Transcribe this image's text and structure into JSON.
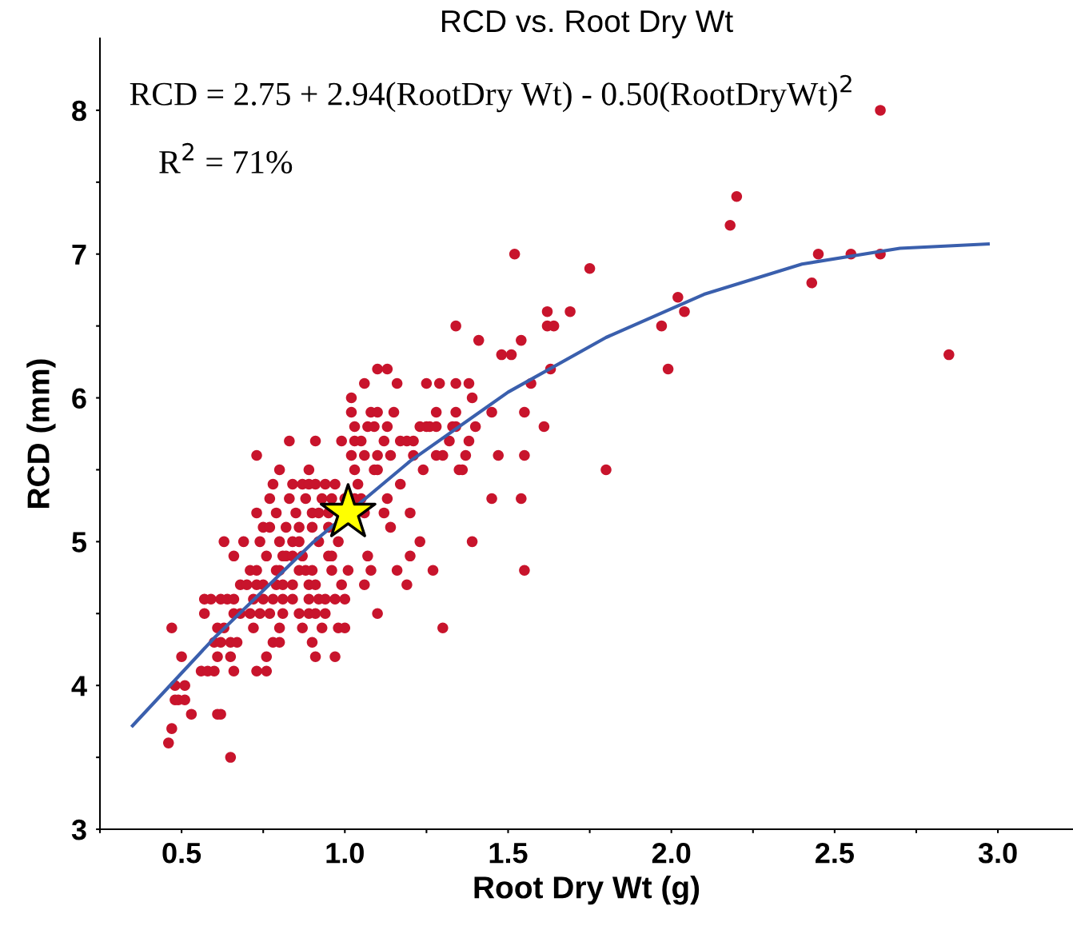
{
  "chart_data": {
    "type": "scatter",
    "title": "RCD vs. Root Dry Wt",
    "xlabel": "Root Dry Wt (g)",
    "ylabel": "RCD (mm)",
    "annotations": [
      "RCD = 2.75 + 2.94(RootDry Wt) - 0.50(RootDryWt)$^{2}$",
      "R$^{2}$ = 71%"
    ],
    "xlim": [
      0.25,
      3.23
    ],
    "ylim": [
      3,
      8.5
    ],
    "xticks": [
      {
        "value": 0.25,
        "label": null
      },
      {
        "value": 0.5,
        "label": "0.5"
      },
      {
        "value": 0.75,
        "label": null
      },
      {
        "value": 1.0,
        "label": "1.0"
      },
      {
        "value": 1.25,
        "label": null
      },
      {
        "value": 1.5,
        "label": "1.5"
      },
      {
        "value": 1.75,
        "label": null
      },
      {
        "value": 2.0,
        "label": "2.0"
      },
      {
        "value": 2.25,
        "label": null
      },
      {
        "value": 2.5,
        "label": "2.5"
      },
      {
        "value": 2.75,
        "label": null
      },
      {
        "value": 3.0,
        "label": "3.0"
      }
    ],
    "yticks": [
      3,
      {
        "value": 3.5,
        "label": null
      },
      4,
      {
        "value": 4.5,
        "label": null
      },
      5,
      {
        "value": 5.5,
        "label": null
      },
      6,
      {
        "value": 6.5,
        "label": null
      },
      7,
      {
        "value": 7.5,
        "label": null
      },
      8
    ],
    "grid": false,
    "legend": false,
    "series": [
      {
        "marker": "circle",
        "color": "#c8142c",
        "x": [
          2.64,
          2.2,
          2.18,
          1.52,
          2.45,
          2.55,
          2.64,
          1.75,
          2.43,
          2.02,
          1.62,
          1.69,
          2.04,
          1.34,
          1.62,
          1.64,
          1.97,
          1.41,
          1.54,
          1.48,
          1.51,
          2.85,
          1.1,
          1.13,
          1.63,
          1.99,
          1.06,
          1.16,
          1.25,
          1.29,
          1.34,
          1.38,
          1.57,
          1.02,
          1.39,
          1.02,
          1.08,
          1.1,
          1.15,
          1.28,
          1.34,
          1.45,
          1.55,
          1.03,
          1.07,
          1.09,
          1.13,
          1.23,
          1.25,
          1.26,
          1.28,
          1.33,
          1.34,
          1.4,
          1.61,
          0.83,
          0.91,
          0.99,
          1.03,
          1.05,
          1.12,
          1.17,
          1.19,
          1.21,
          1.32,
          1.38,
          0.73,
          1.02,
          1.06,
          1.1,
          1.14,
          1.21,
          1.28,
          1.3,
          1.37,
          1.47,
          1.55,
          0.8,
          0.89,
          1.03,
          1.09,
          1.1,
          1.24,
          1.35,
          1.36,
          1.8,
          0.78,
          0.84,
          0.87,
          0.89,
          0.91,
          0.94,
          0.97,
          1.04,
          1.17,
          0.77,
          0.83,
          0.88,
          0.93,
          0.96,
          1.0,
          1.03,
          1.05,
          1.13,
          1.45,
          1.54,
          0.73,
          0.79,
          0.85,
          0.9,
          0.92,
          0.95,
          1.06,
          1.12,
          1.2,
          0.75,
          0.77,
          0.82,
          0.86,
          0.9,
          0.95,
          1.14,
          0.63,
          0.69,
          0.74,
          0.8,
          0.84,
          0.86,
          0.92,
          0.98,
          1.23,
          1.39,
          0.66,
          0.76,
          0.81,
          0.82,
          0.84,
          0.87,
          0.95,
          0.96,
          1.07,
          1.2,
          0.71,
          0.73,
          0.79,
          0.8,
          0.86,
          0.88,
          0.9,
          0.96,
          1.01,
          1.08,
          1.16,
          1.27,
          1.55,
          0.68,
          0.7,
          0.73,
          0.75,
          0.79,
          0.81,
          0.84,
          0.89,
          0.91,
          0.99,
          1.06,
          1.19,
          0.57,
          0.59,
          0.62,
          0.64,
          0.66,
          0.72,
          0.75,
          0.78,
          0.81,
          0.84,
          0.89,
          0.92,
          0.94,
          0.97,
          1.0,
          0.57,
          0.66,
          0.68,
          0.71,
          0.74,
          0.77,
          0.81,
          0.86,
          0.89,
          0.91,
          0.94,
          1.1,
          0.47,
          0.61,
          0.63,
          0.72,
          0.8,
          0.87,
          0.93,
          0.98,
          1.0,
          1.3,
          0.6,
          0.62,
          0.65,
          0.67,
          0.78,
          0.8,
          0.9,
          0.5,
          0.61,
          0.65,
          0.76,
          0.91,
          0.97,
          0.56,
          0.58,
          0.6,
          0.66,
          0.73,
          0.76,
          0.48,
          0.51,
          0.48,
          0.49,
          0.51,
          0.53,
          0.61,
          0.62,
          0.47,
          0.46,
          0.65
        ],
        "values": [
          8.0,
          7.4,
          7.2,
          7.0,
          7.0,
          7.0,
          7.0,
          6.9,
          6.8,
          6.7,
          6.6,
          6.6,
          6.6,
          6.5,
          6.5,
          6.5,
          6.5,
          6.4,
          6.4,
          6.3,
          6.3,
          6.3,
          6.2,
          6.2,
          6.2,
          6.2,
          6.1,
          6.1,
          6.1,
          6.1,
          6.1,
          6.1,
          6.1,
          6.0,
          6.0,
          5.9,
          5.9,
          5.9,
          5.9,
          5.9,
          5.9,
          5.9,
          5.9,
          5.8,
          5.8,
          5.8,
          5.8,
          5.8,
          5.8,
          5.8,
          5.8,
          5.8,
          5.8,
          5.8,
          5.8,
          5.7,
          5.7,
          5.7,
          5.7,
          5.7,
          5.7,
          5.7,
          5.7,
          5.7,
          5.7,
          5.7,
          5.6,
          5.6,
          5.6,
          5.6,
          5.6,
          5.6,
          5.6,
          5.6,
          5.6,
          5.6,
          5.6,
          5.5,
          5.5,
          5.5,
          5.5,
          5.5,
          5.5,
          5.5,
          5.5,
          5.5,
          5.4,
          5.4,
          5.4,
          5.4,
          5.4,
          5.4,
          5.4,
          5.4,
          5.4,
          5.3,
          5.3,
          5.3,
          5.3,
          5.3,
          5.3,
          5.3,
          5.3,
          5.3,
          5.3,
          5.3,
          5.2,
          5.2,
          5.2,
          5.2,
          5.2,
          5.2,
          5.2,
          5.2,
          5.2,
          5.1,
          5.1,
          5.1,
          5.1,
          5.1,
          5.1,
          5.1,
          5.0,
          5.0,
          5.0,
          5.0,
          5.0,
          5.0,
          5.0,
          5.0,
          5.0,
          5.0,
          4.9,
          4.9,
          4.9,
          4.9,
          4.9,
          4.9,
          4.9,
          4.9,
          4.9,
          4.9,
          4.8,
          4.8,
          4.8,
          4.8,
          4.8,
          4.8,
          4.8,
          4.8,
          4.8,
          4.8,
          4.8,
          4.8,
          4.8,
          4.7,
          4.7,
          4.7,
          4.7,
          4.7,
          4.7,
          4.7,
          4.7,
          4.7,
          4.7,
          4.7,
          4.7,
          4.6,
          4.6,
          4.6,
          4.6,
          4.6,
          4.6,
          4.6,
          4.6,
          4.6,
          4.6,
          4.6,
          4.6,
          4.6,
          4.6,
          4.6,
          4.5,
          4.5,
          4.5,
          4.5,
          4.5,
          4.5,
          4.5,
          4.5,
          4.5,
          4.5,
          4.5,
          4.5,
          4.4,
          4.4,
          4.4,
          4.4,
          4.4,
          4.4,
          4.4,
          4.4,
          4.4,
          4.4,
          4.3,
          4.3,
          4.3,
          4.3,
          4.3,
          4.3,
          4.3,
          4.2,
          4.2,
          4.2,
          4.2,
          4.2,
          4.2,
          4.1,
          4.1,
          4.1,
          4.1,
          4.1,
          4.1,
          4.0,
          4.0,
          3.9,
          3.9,
          3.9,
          3.8,
          3.8,
          3.8,
          3.7,
          3.6,
          3.5
        ]
      },
      {
        "type": "line",
        "marker": "none",
        "line_style": "solid",
        "color": "#3a5fad",
        "x": [
          0.35,
          0.6,
          0.9,
          1.2,
          1.5,
          1.8,
          2.1,
          2.4,
          2.7,
          2.97
        ],
        "values": [
          3.72,
          4.33,
          4.99,
          5.56,
          6.04,
          6.42,
          6.72,
          6.93,
          7.04,
          7.07
        ]
      },
      {
        "type": "scatter",
        "marker": "star",
        "color": "#ffff00",
        "x": [
          1.01
        ],
        "values": [
          5.2
        ]
      }
    ]
  }
}
